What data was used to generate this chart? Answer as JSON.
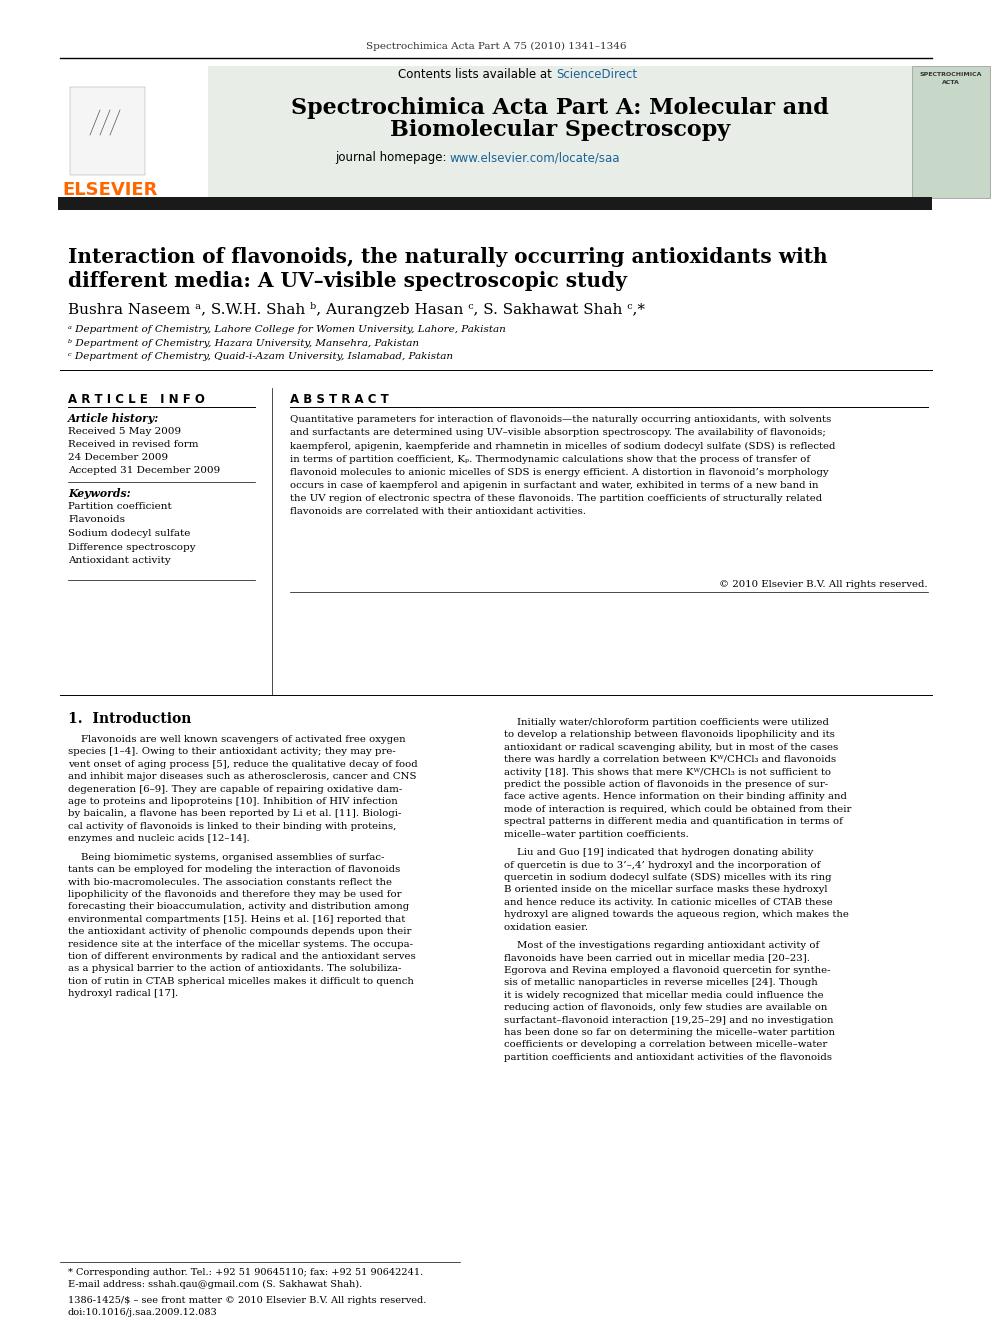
{
  "page_bg": "#ffffff",
  "header_journal": "Spectrochimica Acta Part A 75 (2010) 1341–1346",
  "journal_name_line1": "Spectrochimica Acta Part A: Molecular and",
  "journal_name_line2": "Biomolecular Spectroscopy",
  "contents_text": "Contents lists available at ",
  "science_direct": "ScienceDirect",
  "journal_homepage_text": "journal homepage: ",
  "journal_url": "www.elsevier.com/locate/saa",
  "header_bg": "#e8ede8",
  "dark_bar_color": "#1a1a1a",
  "paper_title_line1": "Interaction of flavonoids, the naturally occurring antioxidants with",
  "paper_title_line2": "different media: A UV–visible spectroscopic study",
  "authors": "Bushra Naseem ᵃ, S.W.H. Shah ᵇ, Aurangzeb Hasan ᶜ, S. Sakhawat Shah ᶜ,*",
  "affil_a": "ᵃ Department of Chemistry, Lahore College for Women University, Lahore, Pakistan",
  "affil_b": "ᵇ Department of Chemistry, Hazara University, Mansehra, Pakistan",
  "affil_c": "ᶜ Department of Chemistry, Quaid-i-Azam University, Islamabad, Pakistan",
  "article_info_title": "A R T I C L E   I N F O",
  "abstract_title": "A B S T R A C T",
  "article_history_title": "Article history:",
  "received": "Received 5 May 2009",
  "received_revised": "Received in revised form",
  "revised_date": "24 December 2009",
  "accepted": "Accepted 31 December 2009",
  "keywords_title": "Keywords:",
  "keywords": [
    "Partition coefficient",
    "Flavonoids",
    "Sodium dodecyl sulfate",
    "Difference spectroscopy",
    "Antioxidant activity"
  ],
  "abstract_lines": [
    "Quantitative parameters for interaction of flavonoids—the naturally occurring antioxidants, with solvents",
    "and surfactants are determined using UV–visible absorption spectroscopy. The availability of flavonoids;",
    "kaempferol, apigenin, kaempferide and rhamnetin in micelles of sodium dodecyl sulfate (SDS) is reflected",
    "in terms of partition coefficient, Kₚ. Thermodynamic calculations show that the process of transfer of",
    "flavonoid molecules to anionic micelles of SDS is energy efficient. A distortion in flavonoid’s morphology",
    "occurs in case of kaempferol and apigenin in surfactant and water, exhibited in terms of a new band in",
    "the UV region of electronic spectra of these flavonoids. The partition coefficients of structurally related",
    "flavonoids are correlated with their antioxidant activities."
  ],
  "copyright": "© 2010 Elsevier B.V. All rights reserved.",
  "section1_title": "1.  Introduction",
  "col1_lines": [
    "    Flavonoids are well known scavengers of activated free oxygen",
    "species [1–4]. Owing to their antioxidant activity; they may pre-",
    "vent onset of aging process [5], reduce the qualitative decay of food",
    "and inhibit major diseases such as atherosclerosis, cancer and CNS",
    "degeneration [6–9]. They are capable of repairing oxidative dam-",
    "age to proteins and lipoproteins [10]. Inhibition of HIV infection",
    "by baicalin, a flavone has been reported by Li et al. [11]. Biologi-",
    "cal activity of flavonoids is linked to their binding with proteins,",
    "enzymes and nucleic acids [12–14].",
    "",
    "    Being biomimetic systems, organised assemblies of surfac-",
    "tants can be employed for modeling the interaction of flavonoids",
    "with bio-macromolecules. The association constants reflect the",
    "lipophilicity of the flavonoids and therefore they may be used for",
    "forecasting their bioaccumulation, activity and distribution among",
    "environmental compartments [15]. Heins et al. [16] reported that",
    "the antioxidant activity of phenolic compounds depends upon their",
    "residence site at the interface of the micellar systems. The occupa-",
    "tion of different environments by radical and the antioxidant serves",
    "as a physical barrier to the action of antioxidants. The solubiliza-",
    "tion of rutin in CTAB spherical micelles makes it difficult to quench",
    "hydroxyl radical [17]."
  ],
  "col2_lines": [
    "    Initially water/chloroform partition coefficients were utilized",
    "to develop a relationship between flavonoids lipophilicity and its",
    "antioxidant or radical scavenging ability, but in most of the cases",
    "there was hardly a correlation between Kᵂ/CHCl₃ and flavonoids",
    "activity [18]. This shows that mere Kᵂ/CHCl₃ is not sufficient to",
    "predict the possible action of flavonoids in the presence of sur-",
    "face active agents. Hence information on their binding affinity and",
    "mode of interaction is required, which could be obtained from their",
    "spectral patterns in different media and quantification in terms of",
    "micelle–water partition coefficients.",
    "",
    "    Liu and Guo [19] indicated that hydrogen donating ability",
    "of quercetin is due to 3’–,4’ hydroxyl and the incorporation of",
    "quercetin in sodium dodecyl sulfate (SDS) micelles with its ring",
    "B oriented inside on the micellar surface masks these hydroxyl",
    "and hence reduce its activity. In cationic micelles of CTAB these",
    "hydroxyl are aligned towards the aqueous region, which makes the",
    "oxidation easier.",
    "",
    "    Most of the investigations regarding antioxidant activity of",
    "flavonoids have been carried out in micellar media [20–23].",
    "Egorova and Revina employed a flavonoid quercetin for synthe-",
    "sis of metallic nanoparticles in reverse micelles [24]. Though",
    "it is widely recognized that micellar media could influence the",
    "reducing action of flavonoids, only few studies are available on",
    "surfactant–flavonoid interaction [19,25–29] and no investigation",
    "has been done so far on determining the micelle–water partition",
    "coefficients or developing a correlation between micelle–water",
    "partition coefficients and antioxidant activities of the flavonoids"
  ],
  "footer_note": "* Corresponding author. Tel.: +92 51 90645110; fax: +92 51 90642241.",
  "footer_email": "E-mail address: sshah.qau@gmail.com (S. Sakhawat Shah).",
  "footer_issn": "1386-1425/$ – see front matter © 2010 Elsevier B.V. All rights reserved.",
  "footer_doi": "doi:10.1016/j.saa.2009.12.083",
  "elsevier_color": "#ff6600",
  "sciencedirect_color": "#1a6496",
  "url_color": "#1a6496"
}
